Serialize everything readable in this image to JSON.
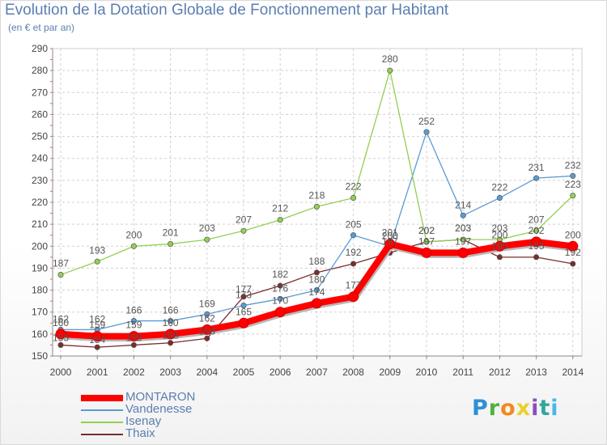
{
  "chart_data": {
    "type": "line",
    "title": "Evolution de la Dotation Globale de Fonctionnement par Habitant",
    "subtitle": "(en € et par an)",
    "x": [
      "2000",
      "2001",
      "2002",
      "2003",
      "2004",
      "2005",
      "2006",
      "2007",
      "2008",
      "2009",
      "2010",
      "2011",
      "2012",
      "2013",
      "2014"
    ],
    "ylim": [
      150,
      290
    ],
    "yticks": [
      150,
      160,
      170,
      180,
      190,
      200,
      210,
      220,
      230,
      240,
      250,
      260,
      270,
      280,
      290
    ],
    "grid": true,
    "legend_position": "bottom-left",
    "series": [
      {
        "name": "MONTARON",
        "color": "#ff0000",
        "values": [
          160,
          159,
          159,
          160,
          162,
          165,
          170,
          174,
          177,
          201,
          197,
          197,
          200,
          202,
          200
        ]
      },
      {
        "name": "Vandenesse",
        "color": "#5b9bd5",
        "values": [
          162,
          162,
          166,
          166,
          169,
          173,
          176,
          180,
          205,
          200,
          252,
          214,
          222,
          231,
          232
        ]
      },
      {
        "name": "Isenay",
        "color": "#92d050",
        "values": [
          187,
          193,
          200,
          201,
          203,
          207,
          212,
          218,
          222,
          280,
          202,
          203,
          203,
          207,
          223
        ]
      },
      {
        "name": "Thaix",
        "color": "#7b2c2c",
        "values": [
          155,
          154,
          155,
          156,
          158,
          177,
          182,
          188,
          192,
          197,
          202,
          203,
          195,
          195,
          192
        ]
      }
    ]
  },
  "brand": {
    "letters": [
      {
        "ch": "P",
        "color": "#2e8fd8"
      },
      {
        "ch": "r",
        "color": "#4fb23c"
      },
      {
        "ch": "o",
        "color": "#f08a1d"
      },
      {
        "ch": "x",
        "color": "#e8d22a"
      },
      {
        "ch": "i",
        "color": "#8a4fc0"
      },
      {
        "ch": "t",
        "color": "#2fa7a0"
      },
      {
        "ch": "i",
        "color": "#49b6e8"
      }
    ]
  }
}
